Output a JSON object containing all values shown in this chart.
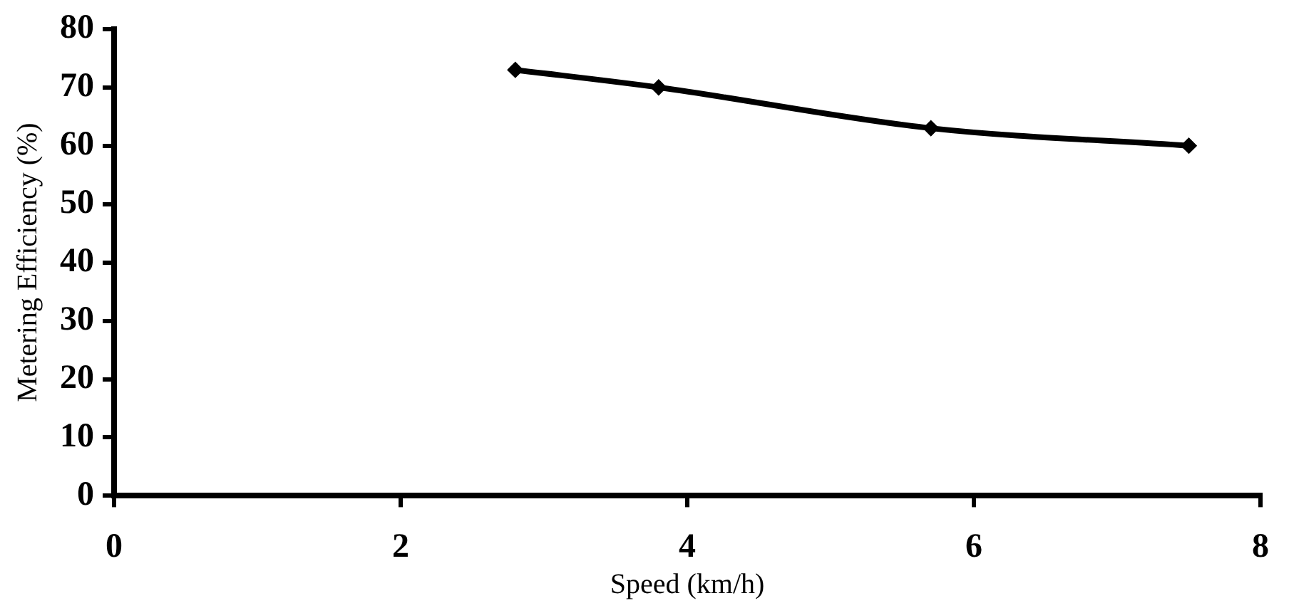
{
  "chart_data": {
    "type": "line",
    "xlabel": "Speed (km/h)",
    "ylabel": "Metering Efficiency (%)",
    "x": [
      2.8,
      3.8,
      5.7,
      7.5
    ],
    "series": [
      {
        "color": "#000000",
        "values": [
          73,
          70,
          63,
          60
        ]
      }
    ],
    "xlim": [
      0,
      8
    ],
    "xticks": [
      0,
      2,
      4,
      6,
      8
    ],
    "ylim": [
      0,
      80
    ],
    "yticks": [
      0,
      10,
      20,
      30,
      40,
      50,
      60,
      70,
      80
    ],
    "grid": false,
    "legend": false,
    "marker": "diamond",
    "line_style": "solid"
  }
}
